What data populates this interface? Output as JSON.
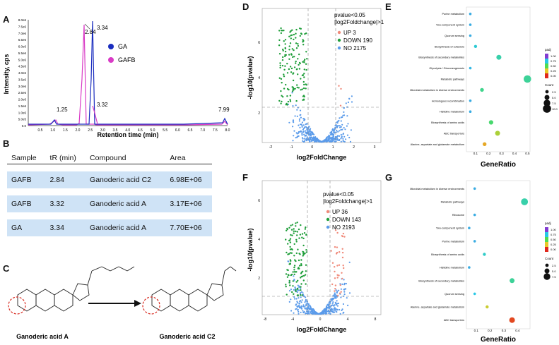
{
  "panels": {
    "A": "A",
    "B": "B",
    "C": "C",
    "D": "D",
    "E": "E",
    "F": "F",
    "G": "G"
  },
  "panelA": {
    "ylabel": "Intensity, cps",
    "xlabel": "Retention time (min)",
    "yticks": [
      "8.0e6",
      "7.5e6",
      "7.0e6",
      "6.5e6",
      "6.0e6",
      "5.5e6",
      "5.0e6",
      "4.5e6",
      "4.0e6",
      "3.5e6",
      "3.0e6",
      "2.5e6",
      "2.0e6",
      "1.5e6",
      "1.0e6",
      "5.0e5",
      "0.0"
    ],
    "xticks": [
      "0.5",
      "1.0",
      "1.5",
      "2.0",
      "2.5",
      "3.0",
      "3.5",
      "4.0",
      "4.5",
      "5.0",
      "5.5",
      "6.0",
      "6.5",
      "7.0",
      "7.5",
      "8.0"
    ],
    "peaks": [
      "2.84",
      "3.34",
      "3.32",
      "1.25",
      "7.99"
    ],
    "legend": [
      {
        "label": "GA",
        "color": "#1a2dbf"
      },
      {
        "label": "GAFB",
        "color": "#d93bc6"
      }
    ]
  },
  "table": {
    "headers": [
      "Sample",
      "tR (min)",
      "Compound",
      "Area"
    ],
    "rows": [
      [
        "GAFB",
        "2.84",
        "Ganoderic acid C2",
        "6.98E+06"
      ],
      [
        "GAFB",
        "3.32",
        "Ganoderic acid A",
        "3.17E+06"
      ],
      [
        "GA",
        "3.34",
        "Ganoderic acid A",
        "7.70E+06"
      ]
    ]
  },
  "structures": {
    "left": "Ganoderic acid A",
    "right": "Ganoderic acid C2"
  },
  "volcanoD": {
    "xlabel": "log2FoldChange",
    "ylabel": "-log10(pvalue)",
    "legend_title": "pvalue<0.05",
    "legend_sub": "|log2Foldchange|>1",
    "legend": [
      {
        "label": "UP 3",
        "color": "#f08a7a"
      },
      {
        "label": "DOWN 190",
        "color": "#1f9e3a"
      },
      {
        "label": "NO 2175",
        "color": "#5b9bea"
      }
    ],
    "xticks": [
      "-2",
      "-1",
      "0",
      "1",
      "2",
      "3"
    ],
    "yticks": [
      "2",
      "4",
      "6"
    ]
  },
  "volcanoF": {
    "xlabel": "log2FoldChange",
    "ylabel": "-log10(pvalue)",
    "legend_title": "pvalue<0.05",
    "legend_sub": "|log2Foldchange|>1",
    "legend": [
      {
        "label": "UP 36",
        "color": "#f08a7a"
      },
      {
        "label": "DOWN 143",
        "color": "#1f9e3a"
      },
      {
        "label": "NO 2193",
        "color": "#5b9bea"
      }
    ],
    "xticks": [
      "-8",
      "-4",
      "0",
      "4",
      "8"
    ],
    "yticks": [
      "2",
      "4",
      "6"
    ]
  },
  "chart_data": [
    {
      "type": "scatter",
      "panel": "E",
      "xlabel": "GeneRatio",
      "xticks": [
        "0.1",
        "0.2",
        "0.3",
        "0.4",
        "0.5"
      ],
      "xlim": [
        0.03,
        0.52
      ],
      "categories": [
        "Purine metabolism",
        "Two-component system",
        "Quorum sensing",
        "Biosynthesis of cofactors",
        "Biosynthesis of secondary metabolites",
        "Glycolysis / Gluconeogenesis",
        "Metabolic pathways",
        "Microbial metabolism in diverse environments",
        "Homologous recombination",
        "Histidine metabolism",
        "Biosynthesis of amino acids",
        "ABC transporters",
        "Alanine, aspartate and glutamate metabolism"
      ],
      "gene_ratio": [
        0.06,
        0.06,
        0.06,
        0.1,
        0.28,
        0.06,
        0.5,
        0.15,
        0.06,
        0.06,
        0.22,
        0.27,
        0.17
      ],
      "count": [
        1,
        1,
        1,
        2,
        5,
        1,
        9,
        3,
        1,
        1,
        4,
        5,
        3
      ],
      "padj": [
        0.8,
        0.8,
        0.8,
        0.72,
        0.65,
        0.78,
        0.62,
        0.6,
        0.8,
        0.8,
        0.55,
        0.35,
        0.2
      ],
      "legend_padj": {
        "title": "padj",
        "ticks": [
          "1.00",
          "0.75",
          "0.50",
          "0.25",
          "0.00"
        ]
      },
      "legend_count": {
        "title": "Count",
        "ticks": [
          "2.5",
          "5.0",
          "7.5",
          "10.0"
        ]
      }
    },
    {
      "type": "scatter",
      "panel": "G",
      "xlabel": "GeneRatio",
      "xticks": [
        "0.1",
        "0.2",
        "0.3",
        "0.4"
      ],
      "xlim": [
        0.03,
        0.49
      ],
      "categories": [
        "Microbial metabolism in diverse environments",
        "Metabolic pathways",
        "Ribosome",
        "Two-component system",
        "Purine metabolism",
        "Biosynthesis of amino acids",
        "Histidine metabolism",
        "Biosynthesis of secondary metabolites",
        "Quorum sensing",
        "Alanine, aspartate and glutamate metabolism",
        "ABC transporters"
      ],
      "gene_ratio": [
        0.09,
        0.45,
        0.09,
        0.05,
        0.09,
        0.16,
        0.05,
        0.36,
        0.09,
        0.18,
        0.36
      ],
      "count": [
        1,
        8,
        1,
        1,
        1,
        2,
        1,
        5,
        1,
        2,
        6
      ],
      "padj": [
        0.8,
        0.65,
        0.8,
        0.8,
        0.8,
        0.7,
        0.8,
        0.62,
        0.75,
        0.3,
        0.05
      ],
      "legend_padj": {
        "title": "padj",
        "ticks": [
          "1.00",
          "0.75",
          "0.50",
          "0.25",
          "0.00"
        ]
      },
      "legend_count": {
        "title": "Count",
        "ticks": [
          "2.5",
          "5.0",
          "7.5"
        ]
      }
    }
  ]
}
